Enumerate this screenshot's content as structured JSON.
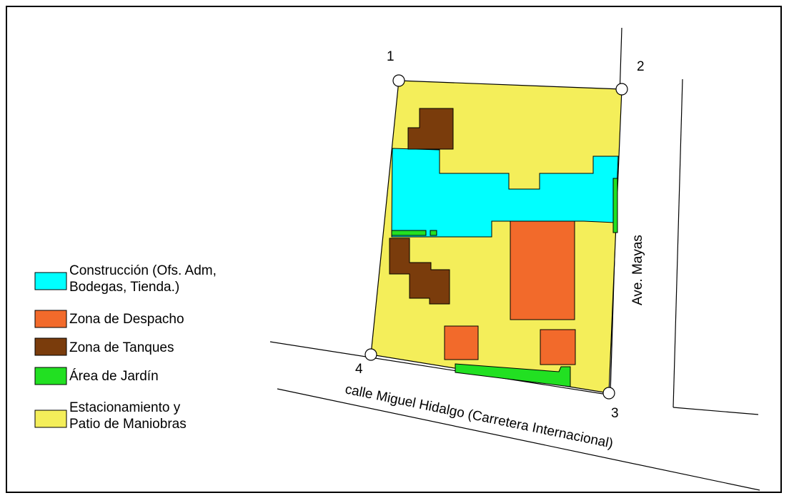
{
  "colors": {
    "construccion": "#00ffff",
    "despacho": "#f26a2b",
    "tanques": "#7a3c0c",
    "jardin": "#22e022",
    "estacionamiento": "#f4ee5a",
    "line": "#000000"
  },
  "legend": [
    {
      "key": "construccion",
      "lines": [
        "Construcción (Ofs. Adm,",
        "Bodegas, Tienda.)"
      ]
    },
    {
      "key": "despacho",
      "lines": [
        "Zona de Despacho"
      ]
    },
    {
      "key": "tanques",
      "lines": [
        "Zona de Tanques"
      ]
    },
    {
      "key": "jardin",
      "lines": [
        "Área de Jardín"
      ]
    },
    {
      "key": "estacionamiento",
      "lines": [
        "Estacionamiento y",
        "Patio de Maniobras"
      ]
    }
  ],
  "vertices": [
    "1",
    "2",
    "3",
    "4"
  ],
  "streets": {
    "bottom": "calle Miguel Hidalgo (Carretera Internacional)",
    "right": "Ave. Mayas"
  }
}
